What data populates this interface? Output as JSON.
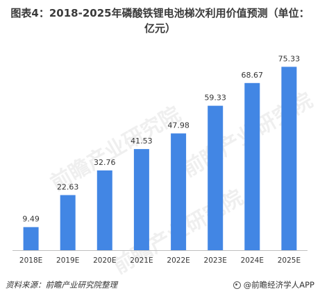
{
  "chart_data": {
    "type": "bar",
    "title": "图表4：2018-2025年磷酸铁锂电池梯次利用价值预测（单位：亿元）",
    "title_lines": [
      "图表4：2018-2025年磷酸铁锂电池梯次利用价值预测（单位：",
      "亿元）"
    ],
    "categories": [
      "2018E",
      "2019E",
      "2020E",
      "2021E",
      "2022E",
      "2023E",
      "2024E",
      "2025E"
    ],
    "values": [
      9.49,
      22.63,
      32.76,
      41.53,
      47.98,
      59.33,
      68.67,
      75.33
    ],
    "value_labels": [
      "9.49",
      "22.63",
      "32.76",
      "41.53",
      "47.98",
      "59.33",
      "68.67",
      "75.33"
    ],
    "ylim": [
      0,
      80
    ],
    "grid": false,
    "bar_color": "#4286e4"
  },
  "footer": {
    "source": "资料来源：前瞻产业研究院整理",
    "brand": "@前瞻经济学人APP"
  },
  "watermark": {
    "text": "前瞻产业研究院"
  },
  "colors": {
    "axis": "#bfbfbf",
    "label": "#333333"
  }
}
